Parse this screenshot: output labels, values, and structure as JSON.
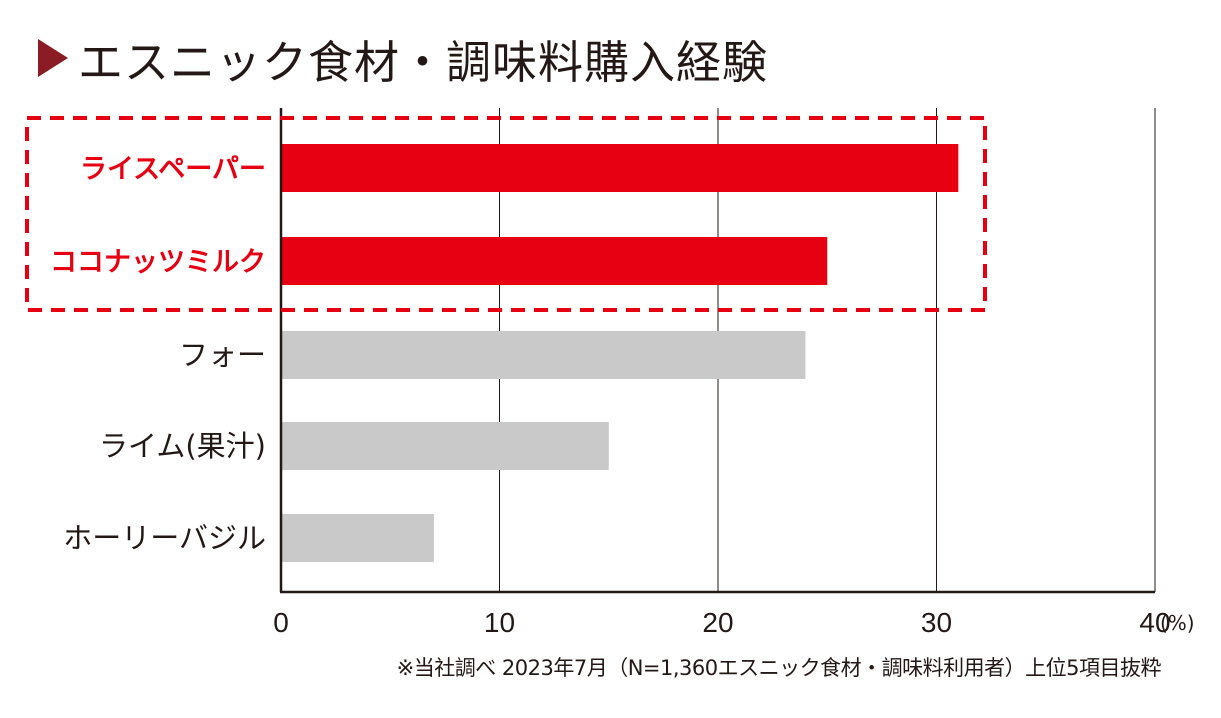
{
  "title": "エスニック食材・調味料購入経験",
  "footnote": "※当社調べ 2023年7月（N=1,360エスニック食材・調味料利用者）上位5項目抜粋",
  "colors": {
    "highlight": "#e60012",
    "normal": "#c9c9c9",
    "title_marker": "#8b1c24",
    "text": "#231815",
    "axis": "#231815"
  },
  "chart_data": {
    "type": "bar",
    "orientation": "horizontal",
    "title": "エスニック食材・調味料購入経験",
    "xlabel": "",
    "ylabel": "",
    "unit_label": "(%)",
    "xlim": [
      0,
      40
    ],
    "ticks": [
      0,
      10,
      20,
      30,
      40
    ],
    "grid": true,
    "categories": [
      "ライスペーパー",
      "ココナッツミルク",
      "フォー",
      "ライム(果汁)",
      "ホーリーバジル"
    ],
    "values": [
      31,
      25,
      24,
      15,
      7
    ],
    "highlighted": [
      true,
      true,
      false,
      false,
      false
    ],
    "highlight_box": "dashed red box around first two categories"
  }
}
